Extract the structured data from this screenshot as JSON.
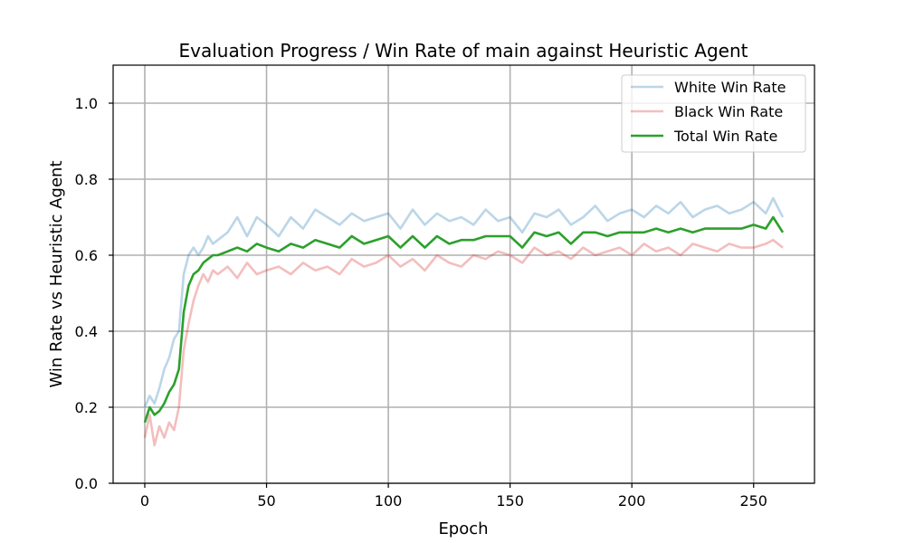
{
  "chart_data": {
    "type": "line",
    "title": "Evaluation Progress / Win Rate of main against Heuristic Agent",
    "xlabel": "Epoch",
    "ylabel": "Win Rate vs Heuristic Agent",
    "xlim": [
      -13,
      275
    ],
    "ylim": [
      0,
      1.1
    ],
    "xticks": [
      0,
      50,
      100,
      150,
      200,
      250
    ],
    "yticks": [
      0.0,
      0.2,
      0.4,
      0.6,
      0.8,
      1.0
    ],
    "xtick_labels": [
      "0",
      "50",
      "100",
      "150",
      "200",
      "250"
    ],
    "ytick_labels": [
      "0.0",
      "0.2",
      "0.4",
      "0.6",
      "0.8",
      "1.0"
    ],
    "grid": true,
    "legend_position": "top-right",
    "x": [
      0,
      2,
      4,
      6,
      8,
      10,
      12,
      14,
      16,
      18,
      20,
      22,
      24,
      26,
      28,
      30,
      34,
      38,
      42,
      46,
      50,
      55,
      60,
      65,
      70,
      75,
      80,
      85,
      90,
      95,
      100,
      105,
      110,
      115,
      120,
      125,
      130,
      135,
      140,
      145,
      150,
      155,
      160,
      165,
      170,
      175,
      180,
      185,
      190,
      195,
      200,
      205,
      210,
      215,
      220,
      225,
      230,
      235,
      240,
      245,
      250,
      255,
      258,
      262
    ],
    "series": [
      {
        "name": "White Win Rate",
        "color": "#1f77b4",
        "opacity": 0.3,
        "values": [
          0.2,
          0.23,
          0.21,
          0.25,
          0.3,
          0.33,
          0.38,
          0.4,
          0.55,
          0.6,
          0.62,
          0.6,
          0.62,
          0.65,
          0.63,
          0.64,
          0.66,
          0.7,
          0.65,
          0.7,
          0.68,
          0.65,
          0.7,
          0.67,
          0.72,
          0.7,
          0.68,
          0.71,
          0.69,
          0.7,
          0.71,
          0.67,
          0.72,
          0.68,
          0.71,
          0.69,
          0.7,
          0.68,
          0.72,
          0.69,
          0.7,
          0.66,
          0.71,
          0.7,
          0.72,
          0.68,
          0.7,
          0.73,
          0.69,
          0.71,
          0.72,
          0.7,
          0.73,
          0.71,
          0.74,
          0.7,
          0.72,
          0.73,
          0.71,
          0.72,
          0.74,
          0.71,
          0.75,
          0.7
        ]
      },
      {
        "name": "Black Win Rate",
        "color": "#d62728",
        "opacity": 0.3,
        "values": [
          0.12,
          0.18,
          0.1,
          0.15,
          0.12,
          0.16,
          0.14,
          0.2,
          0.35,
          0.42,
          0.48,
          0.52,
          0.55,
          0.53,
          0.56,
          0.55,
          0.57,
          0.54,
          0.58,
          0.55,
          0.56,
          0.57,
          0.55,
          0.58,
          0.56,
          0.57,
          0.55,
          0.59,
          0.57,
          0.58,
          0.6,
          0.57,
          0.59,
          0.56,
          0.6,
          0.58,
          0.57,
          0.6,
          0.59,
          0.61,
          0.6,
          0.58,
          0.62,
          0.6,
          0.61,
          0.59,
          0.62,
          0.6,
          0.61,
          0.62,
          0.6,
          0.63,
          0.61,
          0.62,
          0.6,
          0.63,
          0.62,
          0.61,
          0.63,
          0.62,
          0.62,
          0.63,
          0.64,
          0.62
        ]
      },
      {
        "name": "Total Win Rate",
        "color": "#2ca02c",
        "opacity": 1.0,
        "values": [
          0.16,
          0.2,
          0.18,
          0.19,
          0.21,
          0.24,
          0.26,
          0.3,
          0.45,
          0.52,
          0.55,
          0.56,
          0.58,
          0.59,
          0.6,
          0.6,
          0.61,
          0.62,
          0.61,
          0.63,
          0.62,
          0.61,
          0.63,
          0.62,
          0.64,
          0.63,
          0.62,
          0.65,
          0.63,
          0.64,
          0.65,
          0.62,
          0.65,
          0.62,
          0.65,
          0.63,
          0.64,
          0.64,
          0.65,
          0.65,
          0.65,
          0.62,
          0.66,
          0.65,
          0.66,
          0.63,
          0.66,
          0.66,
          0.65,
          0.66,
          0.66,
          0.66,
          0.67,
          0.66,
          0.67,
          0.66,
          0.67,
          0.67,
          0.67,
          0.67,
          0.68,
          0.67,
          0.7,
          0.66
        ]
      }
    ]
  }
}
